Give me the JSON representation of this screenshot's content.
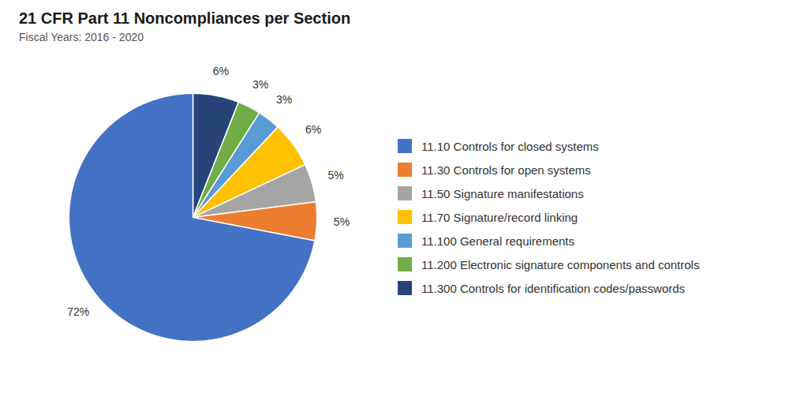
{
  "chart_data": {
    "type": "pie",
    "title": "21 CFR Part 11 Noncompliances per Section",
    "subtitle": "Fiscal Years: 2016 - 2020",
    "categories": [
      "11.10 Controls for closed systems",
      "11.30 Controls for open systems",
      "11.50 Signature manifestations",
      "11.70 Signature/record linking",
      "11.100 General requirements",
      "11.200 Electronic signature components and controls",
      "11.300 Controls for identification codes/passwords"
    ],
    "values": [
      72,
      5,
      5,
      6,
      3,
      3,
      6
    ],
    "value_labels": [
      "72%",
      "5%",
      "5%",
      "6%",
      "3%",
      "3%",
      "6%"
    ],
    "colors": [
      "#4472C4",
      "#ED7D31",
      "#A5A5A5",
      "#FFC000",
      "#5B9BD5",
      "#70AD47",
      "#264478"
    ],
    "data_labels": true,
    "legend": "right"
  }
}
